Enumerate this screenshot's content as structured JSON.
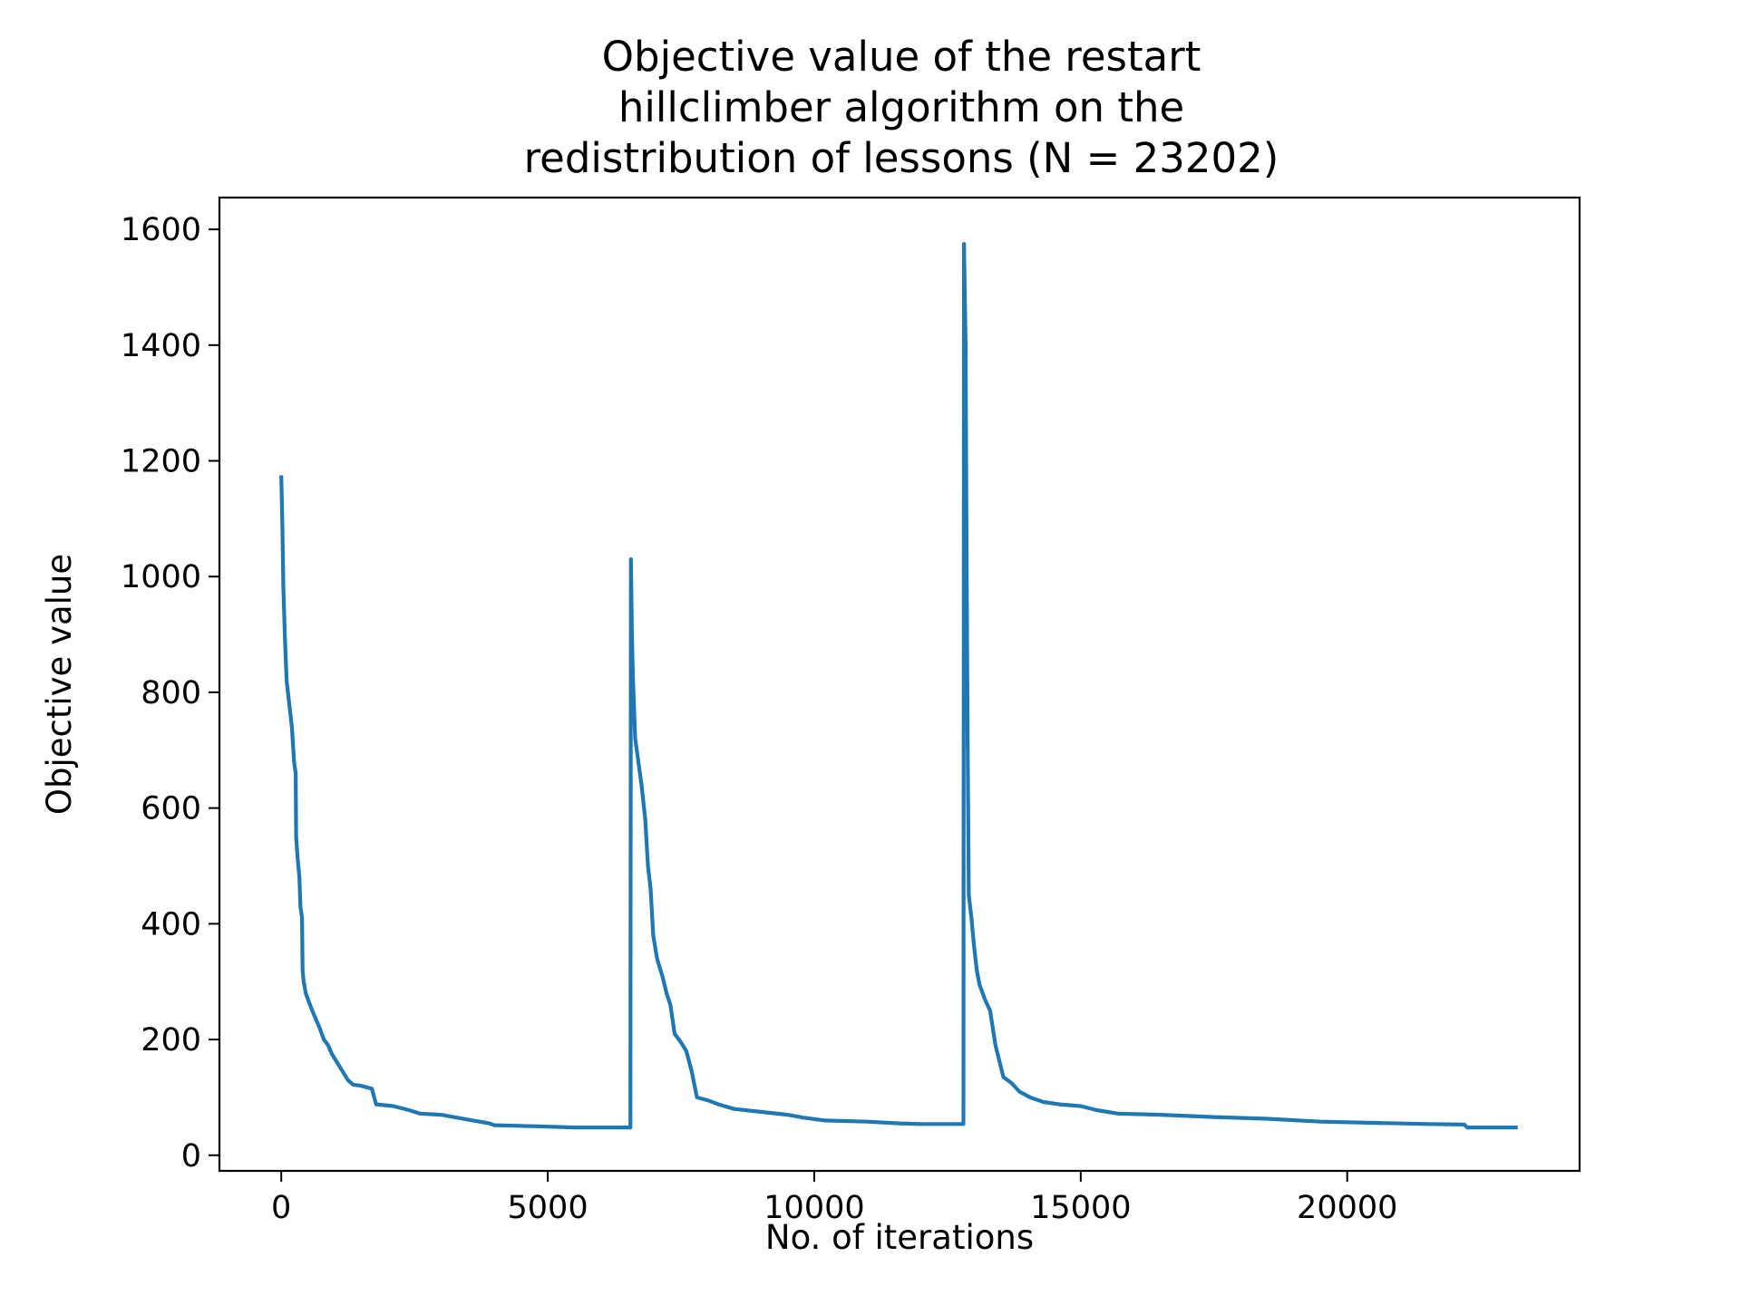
{
  "chart_data": {
    "type": "line",
    "title_lines": [
      "Objective value of the restart",
      "hillclimber algorithm on the",
      "redistribution of lessons (N = 23202)"
    ],
    "xlabel": "No. of iterations",
    "ylabel": "Objective value",
    "xlim": [
      -1160,
      24360
    ],
    "ylim": [
      -27,
      1655
    ],
    "x_ticks": [
      0,
      5000,
      10000,
      15000,
      20000
    ],
    "y_ticks": [
      0,
      200,
      400,
      600,
      800,
      1000,
      1200,
      1400,
      1600
    ],
    "grid": false,
    "legend": "none",
    "series": [
      {
        "color": "#1f77b4",
        "points": [
          [
            0,
            1175
          ],
          [
            20,
            1090
          ],
          [
            40,
            980
          ],
          [
            70,
            890
          ],
          [
            100,
            820
          ],
          [
            150,
            780
          ],
          [
            200,
            740
          ],
          [
            240,
            680
          ],
          [
            270,
            660
          ],
          [
            280,
            550
          ],
          [
            310,
            510
          ],
          [
            340,
            480
          ],
          [
            360,
            430
          ],
          [
            390,
            410
          ],
          [
            400,
            320
          ],
          [
            420,
            300
          ],
          [
            460,
            280
          ],
          [
            520,
            265
          ],
          [
            580,
            250
          ],
          [
            650,
            235
          ],
          [
            720,
            220
          ],
          [
            800,
            200
          ],
          [
            880,
            190
          ],
          [
            950,
            175
          ],
          [
            1050,
            160
          ],
          [
            1150,
            145
          ],
          [
            1250,
            130
          ],
          [
            1350,
            122
          ],
          [
            1500,
            120
          ],
          [
            1700,
            115
          ],
          [
            1780,
            88
          ],
          [
            2100,
            85
          ],
          [
            2400,
            78
          ],
          [
            2600,
            72
          ],
          [
            3000,
            70
          ],
          [
            3300,
            65
          ],
          [
            3600,
            60
          ],
          [
            3900,
            55
          ],
          [
            4000,
            52
          ],
          [
            4800,
            50
          ],
          [
            5500,
            48
          ],
          [
            6550,
            48
          ],
          [
            6560,
            1030
          ],
          [
            6580,
            900
          ],
          [
            6600,
            820
          ],
          [
            6640,
            720
          ],
          [
            6700,
            680
          ],
          [
            6760,
            640
          ],
          [
            6830,
            580
          ],
          [
            6880,
            500
          ],
          [
            6930,
            460
          ],
          [
            6980,
            380
          ],
          [
            7050,
            340
          ],
          [
            7150,
            310
          ],
          [
            7230,
            280
          ],
          [
            7300,
            260
          ],
          [
            7380,
            210
          ],
          [
            7500,
            195
          ],
          [
            7600,
            180
          ],
          [
            7700,
            145
          ],
          [
            7800,
            100
          ],
          [
            8000,
            95
          ],
          [
            8200,
            88
          ],
          [
            8500,
            80
          ],
          [
            9000,
            75
          ],
          [
            9500,
            70
          ],
          [
            9800,
            65
          ],
          [
            10200,
            60
          ],
          [
            11000,
            58
          ],
          [
            11600,
            55
          ],
          [
            12000,
            54
          ],
          [
            12800,
            54
          ],
          [
            12810,
            1575
          ],
          [
            12840,
            1400
          ],
          [
            12860,
            1000
          ],
          [
            12880,
            700
          ],
          [
            12900,
            450
          ],
          [
            12950,
            410
          ],
          [
            13000,
            360
          ],
          [
            13050,
            320
          ],
          [
            13100,
            295
          ],
          [
            13200,
            270
          ],
          [
            13300,
            250
          ],
          [
            13400,
            190
          ],
          [
            13550,
            135
          ],
          [
            13700,
            125
          ],
          [
            13850,
            110
          ],
          [
            14050,
            100
          ],
          [
            14300,
            92
          ],
          [
            14600,
            88
          ],
          [
            15000,
            85
          ],
          [
            15300,
            78
          ],
          [
            15700,
            72
          ],
          [
            16500,
            70
          ],
          [
            17500,
            66
          ],
          [
            18500,
            63
          ],
          [
            19500,
            58
          ],
          [
            20500,
            56
          ],
          [
            21500,
            54
          ],
          [
            22200,
            53
          ],
          [
            22250,
            48
          ],
          [
            23200,
            48
          ]
        ]
      }
    ]
  }
}
